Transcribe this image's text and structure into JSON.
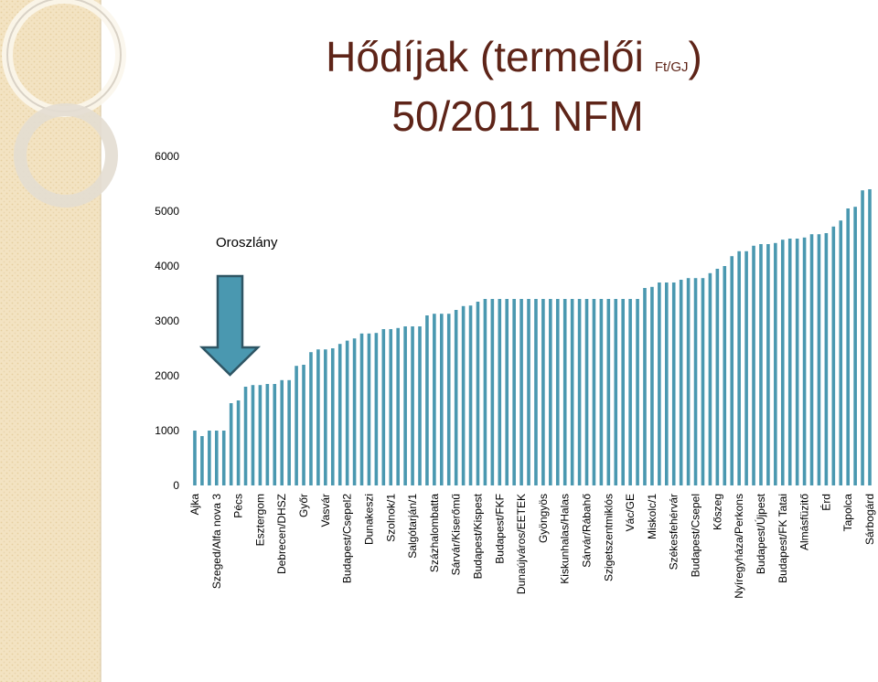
{
  "chart_data": {
    "type": "bar",
    "title_lead": "Hődíjak (termelői",
    "title_unit": "Ft/GJ",
    "title_close": ")",
    "subtitle": "50/2011 NFM",
    "annotation": "Oroszlány",
    "color": "#4a98b0",
    "ylim": [
      0,
      6000
    ],
    "yticks": [
      0,
      1000,
      2000,
      3000,
      4000,
      5000,
      6000
    ],
    "grid": false,
    "categories": [
      "Ajka",
      null,
      null,
      "Szeged/Alfa nova 3",
      null,
      null,
      "Pécs",
      null,
      null,
      "Esztergom",
      null,
      null,
      "Debrecen/DHSZ",
      null,
      null,
      "Győr",
      null,
      null,
      "Vasvár",
      null,
      null,
      "Budapest/Csepel2",
      null,
      null,
      "Dunakeszi",
      null,
      null,
      "Szolnok/1",
      null,
      null,
      "Salgótarján/1",
      null,
      null,
      "Százhalombatta",
      null,
      null,
      "Sárvár/Kiserőmű",
      null,
      null,
      "Budapest/Kispest",
      null,
      null,
      "Budapest/FKF",
      null,
      null,
      "Dunaújváros/EETEK",
      null,
      null,
      "Gyöngyös",
      null,
      null,
      "Kiskunhalas/Halas",
      null,
      null,
      "Sárvár/Rábahő",
      null,
      null,
      "Szigetszentmiklós",
      null,
      null,
      "Vác/GE",
      null,
      null,
      "Miskolc/1",
      null,
      null,
      "Székesfehérvár",
      null,
      null,
      "Budapest/Csepel",
      null,
      null,
      "Kőszeg",
      null,
      null,
      "Nyíregyháza/Perkons",
      null,
      null,
      "Budapest/Újpest",
      null,
      null,
      "Budapest/FK Tatai",
      null,
      null,
      "Almásfüzitő",
      null,
      null,
      "Érd",
      null,
      null,
      "Tapolca",
      null,
      null,
      "Sárbogárd"
    ],
    "values": [
      1000,
      900,
      1000,
      1000,
      1000,
      1500,
      1550,
      1800,
      1830,
      1830,
      1850,
      1850,
      1920,
      1920,
      2180,
      2200,
      2430,
      2480,
      2480,
      2500,
      2580,
      2640,
      2680,
      2770,
      2770,
      2780,
      2850,
      2850,
      2870,
      2900,
      2900,
      2900,
      3100,
      3130,
      3130,
      3130,
      3200,
      3270,
      3280,
      3350,
      3400,
      3400,
      3400,
      3400,
      3400,
      3400,
      3400,
      3400,
      3400,
      3400,
      3400,
      3400,
      3400,
      3400,
      3400,
      3400,
      3400,
      3400,
      3400,
      3400,
      3400,
      3400,
      3600,
      3620,
      3700,
      3700,
      3700,
      3750,
      3780,
      3780,
      3780,
      3870,
      3950,
      4000,
      4180,
      4270,
      4270,
      4370,
      4400,
      4400,
      4420,
      4480,
      4500,
      4500,
      4520,
      4580,
      4580,
      4600,
      4720,
      4830,
      5050,
      5080,
      5380,
      5400
    ]
  }
}
